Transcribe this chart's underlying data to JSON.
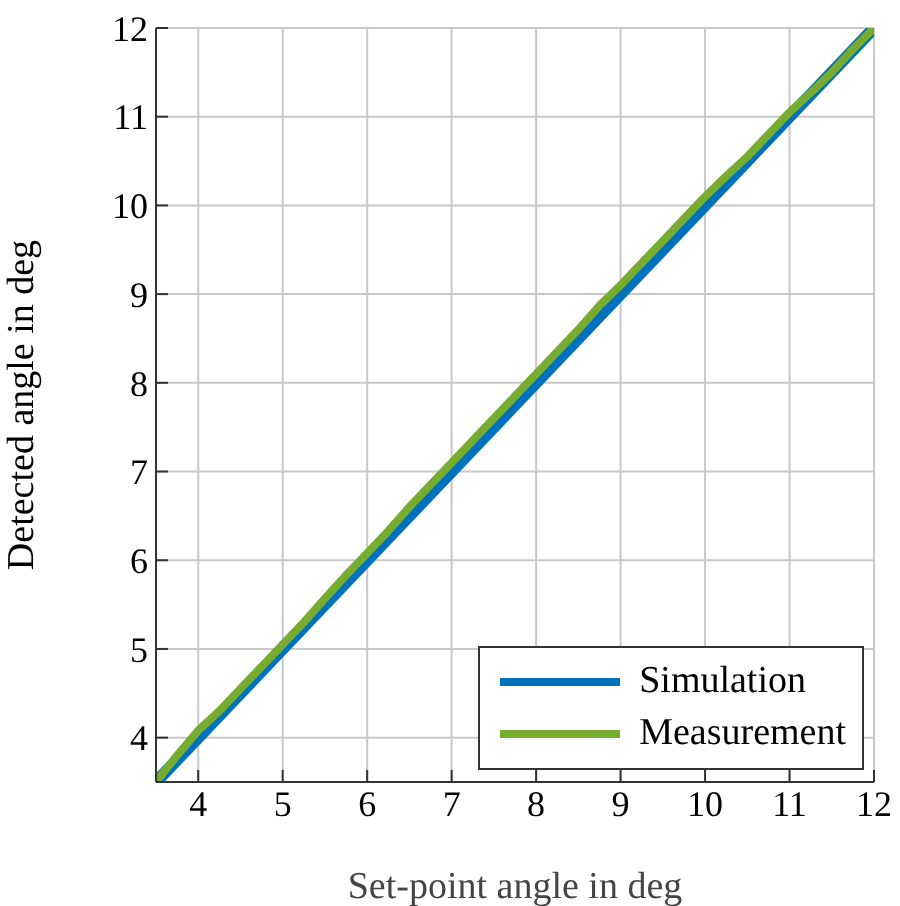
{
  "chart_data": {
    "type": "line",
    "xlabel": "Set-point angle in deg",
    "ylabel": "Detected angle in deg",
    "xlim": [
      3.5,
      12
    ],
    "ylim": [
      3.5,
      12
    ],
    "xticks": [
      4,
      5,
      6,
      7,
      8,
      9,
      10,
      11,
      12
    ],
    "yticks": [
      4,
      5,
      6,
      7,
      8,
      9,
      10,
      11,
      12
    ],
    "grid": true,
    "legend": "bottom right",
    "marker": "none",
    "line_style": "solid",
    "series": [
      {
        "name": "Simulation",
        "color": "#0072bd",
        "x": [
          3.5,
          12
        ],
        "values": [
          3.5,
          12
        ]
      },
      {
        "name": "Measurement",
        "color": "#77ac30",
        "x": [
          3.5,
          3.75,
          4,
          4.25,
          4.5,
          4.75,
          5,
          5.25,
          5.5,
          5.75,
          6,
          6.25,
          6.5,
          6.75,
          7,
          7.25,
          7.5,
          7.75,
          8,
          8.25,
          8.5,
          8.75,
          9,
          9.25,
          9.5,
          9.75,
          10,
          10.25,
          10.5,
          10.75,
          11,
          11.25,
          11.5,
          11.75,
          12
        ],
        "values": [
          3.5,
          3.8,
          4.08,
          4.3,
          4.55,
          4.8,
          5.05,
          5.3,
          5.57,
          5.83,
          6.08,
          6.33,
          6.6,
          6.85,
          7.1,
          7.35,
          7.6,
          7.85,
          8.1,
          8.35,
          8.6,
          8.87,
          9.1,
          9.35,
          9.6,
          9.85,
          10.1,
          10.33,
          10.55,
          10.8,
          11.05,
          11.27,
          11.5,
          11.76,
          12
        ]
      }
    ]
  }
}
